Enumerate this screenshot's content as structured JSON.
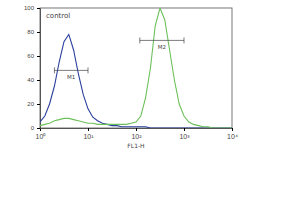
{
  "chart_data": {
    "type": "line",
    "annotation": "control",
    "xlabel": "FL1-H",
    "log": "x",
    "grid": false,
    "xlim": [
      1,
      10000
    ],
    "xticks": [
      {
        "value": 1,
        "label": "10⁰"
      },
      {
        "value": 10,
        "label": "10¹"
      },
      {
        "value": 100,
        "label": "10²"
      },
      {
        "value": 1000,
        "label": "10³"
      },
      {
        "value": 10000,
        "label": "10⁴"
      }
    ],
    "ylim": [
      0,
      100
    ],
    "yticks": [
      0,
      20,
      40,
      60,
      80,
      100
    ],
    "x": [
      1,
      1.26,
      1.58,
      2,
      2.51,
      3.16,
      3.98,
      5.01,
      6.31,
      7.94,
      10,
      12.6,
      15.8,
      20,
      25.1,
      31.6,
      39.8,
      50.1,
      63.1,
      79.4,
      100,
      126,
      158,
      200,
      251,
      316,
      398,
      501,
      631,
      794,
      1000,
      1260,
      1580,
      2000,
      2510,
      3160,
      3980,
      5010,
      6310,
      7940,
      10000
    ],
    "series": [
      {
        "color": "#2a3f9e",
        "values": [
          5,
          10,
          20,
          35,
          55,
          72,
          78,
          65,
          45,
          28,
          16,
          9,
          6,
          4,
          3,
          2,
          2,
          1,
          1,
          1,
          1,
          1,
          1,
          0,
          0,
          0,
          0,
          0,
          0,
          0,
          0,
          0,
          0,
          0,
          0,
          0,
          0,
          0,
          0,
          0,
          0
        ]
      },
      {
        "color": "#6cc05a",
        "values": [
          2,
          3,
          4,
          6,
          7,
          8,
          8,
          7,
          6,
          5,
          4,
          4,
          3,
          3,
          3,
          3,
          3,
          3,
          3,
          4,
          5,
          10,
          25,
          50,
          85,
          100,
          90,
          65,
          40,
          20,
          10,
          5,
          3,
          2,
          1,
          1,
          0,
          0,
          0,
          0,
          0
        ]
      }
    ],
    "gates": [
      {
        "label": "M1",
        "x": [
          2,
          10
        ],
        "y": 48
      },
      {
        "label": "M2",
        "x": [
          120,
          1000
        ],
        "y": 73
      }
    ]
  }
}
